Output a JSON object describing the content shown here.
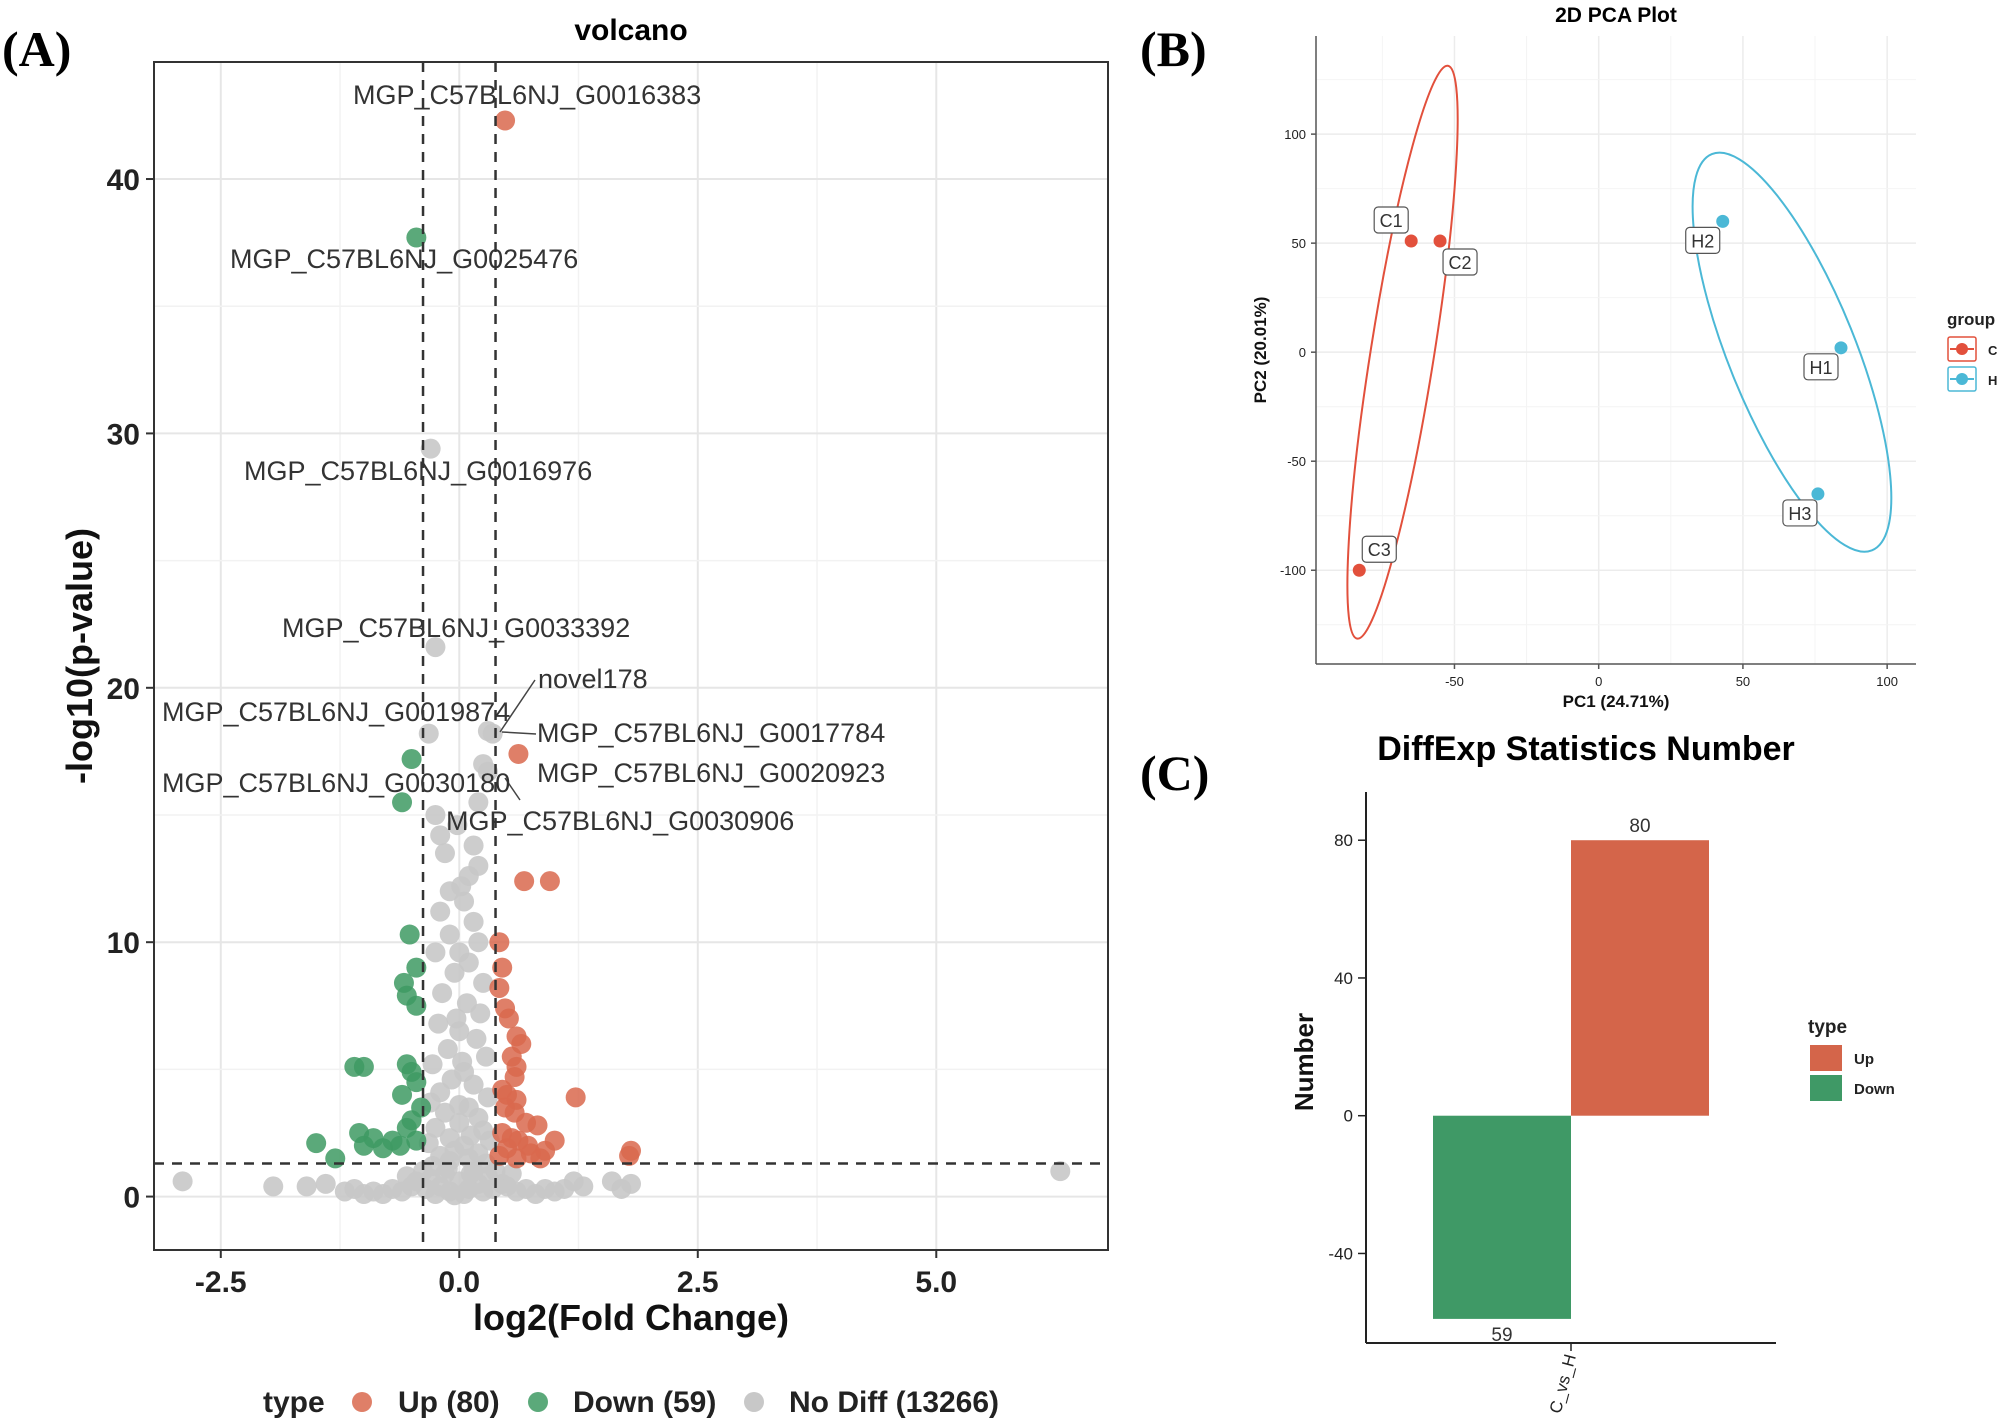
{
  "panels": {
    "a": "(A)",
    "b": "(B)",
    "c": "(C)"
  },
  "colors": {
    "up": "#d9694d",
    "down": "#3e9a63",
    "nodiff": "#c8c8c8",
    "pca_c": "#e2503c",
    "pca_h": "#4bb8d6",
    "bar_up": "#d4654a",
    "bar_down": "#3f9966"
  },
  "chart_data": [
    {
      "type": "scatter",
      "id": "volcano",
      "title": "volcano",
      "xlabel": "log2(Fold Change)",
      "ylabel": "-log10(p-value)",
      "xlim": [
        -3.2,
        6.8
      ],
      "ylim": [
        -2.1,
        44.6
      ],
      "xticks": [
        -2.5,
        0.0,
        2.5,
        5.0
      ],
      "xtick_labels": [
        "-2.5",
        "0.0",
        "2.5",
        "5.0"
      ],
      "yticks": [
        0,
        10,
        20,
        30,
        40
      ],
      "ytick_labels": [
        "0",
        "10",
        "20",
        "30",
        "40"
      ],
      "thresholds": {
        "x": [
          -0.38,
          0.38
        ],
        "y": 1.3
      },
      "legend": {
        "title": "type",
        "entries": [
          "Up (80)",
          "Down (59)",
          "No Diff (13266)"
        ]
      },
      "labels": [
        {
          "text": "MGP_C57BL6NJ_G0016383",
          "x": 0.48,
          "y": 42.3
        },
        {
          "text": "MGP_C57BL6NJ_G0025476",
          "x": -0.45,
          "y": 37.7
        },
        {
          "text": "MGP_C57BL6NJ_G0016976",
          "x": -0.3,
          "y": 29.4
        },
        {
          "text": "MGP_C57BL6NJ_G0033392",
          "x": -0.3,
          "y": 21.6
        },
        {
          "text": "novel178",
          "x": 0.3,
          "y": 18.3
        },
        {
          "text": "MGP_C57BL6NJ_G0019874",
          "x": -0.32,
          "y": 18.2
        },
        {
          "text": "MGP_C57BL6NJ_G0017784",
          "x": 0.35,
          "y": 18.2
        },
        {
          "text": "MGP_C57BL6NJ_G0020923",
          "x": 0.6,
          "y": 17.4
        },
        {
          "text": "MGP_C57BL6NJ_G0030180",
          "x": -0.42,
          "y": 17.2
        },
        {
          "text": "MGP_C57BL6NJ_G0030906",
          "x": 0.3,
          "y": 16.7
        }
      ],
      "series": [
        {
          "name": "Up",
          "points": [
            [
              0.48,
              42.3
            ],
            [
              0.62,
              17.4
            ],
            [
              0.68,
              12.4
            ],
            [
              0.95,
              12.4
            ],
            [
              0.42,
              10.0
            ],
            [
              0.45,
              9.0
            ],
            [
              0.42,
              8.2
            ],
            [
              0.48,
              7.4
            ],
            [
              0.52,
              7.0
            ],
            [
              0.6,
              6.3
            ],
            [
              0.65,
              6.0
            ],
            [
              0.55,
              5.5
            ],
            [
              0.6,
              5.1
            ],
            [
              0.58,
              4.7
            ],
            [
              0.45,
              4.2
            ],
            [
              0.5,
              4.0
            ],
            [
              0.6,
              3.8
            ],
            [
              0.48,
              3.5
            ],
            [
              0.58,
              3.3
            ],
            [
              0.7,
              2.9
            ],
            [
              0.82,
              2.8
            ],
            [
              0.45,
              2.5
            ],
            [
              0.55,
              2.3
            ],
            [
              0.62,
              2.2
            ],
            [
              0.72,
              2.0
            ],
            [
              0.5,
              1.9
            ],
            [
              0.9,
              1.8
            ],
            [
              1.0,
              2.2
            ],
            [
              1.22,
              3.9
            ],
            [
              1.8,
              1.8
            ],
            [
              0.42,
              1.6
            ],
            [
              0.6,
              1.5
            ],
            [
              0.75,
              1.7
            ],
            [
              0.85,
              1.5
            ],
            [
              1.78,
              1.6
            ]
          ]
        },
        {
          "name": "Down",
          "points": [
            [
              -0.45,
              37.7
            ],
            [
              -0.5,
              17.2
            ],
            [
              -0.6,
              15.5
            ],
            [
              -0.52,
              10.3
            ],
            [
              -0.45,
              9.0
            ],
            [
              -0.58,
              8.4
            ],
            [
              -0.55,
              7.9
            ],
            [
              -0.45,
              7.5
            ],
            [
              -1.0,
              5.1
            ],
            [
              -1.1,
              5.1
            ],
            [
              -0.55,
              5.2
            ],
            [
              -0.5,
              4.9
            ],
            [
              -0.45,
              4.5
            ],
            [
              -0.6,
              4.0
            ],
            [
              -0.4,
              3.5
            ],
            [
              -0.5,
              3.0
            ],
            [
              -0.55,
              2.7
            ],
            [
              -1.05,
              2.5
            ],
            [
              -0.9,
              2.3
            ],
            [
              -0.7,
              2.2
            ],
            [
              -0.62,
              2.0
            ],
            [
              -0.8,
              1.9
            ],
            [
              -1.0,
              2.0
            ],
            [
              -1.5,
              2.1
            ],
            [
              -1.3,
              1.5
            ],
            [
              -0.45,
              2.2
            ]
          ]
        },
        {
          "name": "No Diff",
          "points": [
            [
              -0.3,
              29.4
            ],
            [
              -0.25,
              21.6
            ],
            [
              0.3,
              18.3
            ],
            [
              -0.32,
              18.2
            ],
            [
              0.35,
              18.2
            ],
            [
              0.25,
              17.0
            ],
            [
              0.3,
              16.7
            ],
            [
              0.2,
              15.5
            ],
            [
              -0.25,
              15.0
            ],
            [
              -0.2,
              14.2
            ],
            [
              0.15,
              13.8
            ],
            [
              -0.15,
              13.5
            ],
            [
              0.2,
              13.0
            ],
            [
              0.1,
              12.6
            ],
            [
              -0.1,
              12.0
            ],
            [
              0.05,
              11.6
            ],
            [
              -0.2,
              11.2
            ],
            [
              0.15,
              10.8
            ],
            [
              -0.1,
              10.3
            ],
            [
              0.2,
              10.0
            ],
            [
              -0.25,
              9.6
            ],
            [
              0.1,
              9.2
            ],
            [
              -0.05,
              8.8
            ],
            [
              0.25,
              8.4
            ],
            [
              -0.18,
              8.0
            ],
            [
              0.08,
              7.6
            ],
            [
              0.22,
              7.2
            ],
            [
              -0.22,
              6.8
            ],
            [
              0.0,
              6.5
            ],
            [
              0.18,
              6.2
            ],
            [
              -0.12,
              5.8
            ],
            [
              0.28,
              5.5
            ],
            [
              -0.28,
              5.2
            ],
            [
              0.05,
              4.9
            ],
            [
              -0.08,
              4.6
            ],
            [
              0.15,
              4.4
            ],
            [
              -0.2,
              4.1
            ],
            [
              0.3,
              3.9
            ],
            [
              -0.3,
              3.7
            ],
            [
              0.1,
              3.5
            ],
            [
              -0.15,
              3.3
            ],
            [
              0.2,
              3.1
            ],
            [
              0.0,
              2.9
            ],
            [
              -0.25,
              2.7
            ],
            [
              0.25,
              2.6
            ],
            [
              0.12,
              2.4
            ],
            [
              -0.1,
              2.3
            ],
            [
              0.32,
              2.2
            ],
            [
              -0.32,
              2.1
            ],
            [
              0.05,
              2.0
            ],
            [
              -0.05,
              1.8
            ],
            [
              0.2,
              1.7
            ],
            [
              -0.2,
              1.6
            ],
            [
              0.1,
              1.5
            ],
            [
              -0.1,
              1.4
            ],
            [
              0.28,
              1.3
            ],
            [
              -0.28,
              1.2
            ],
            [
              0.15,
              1.0
            ],
            [
              -0.15,
              0.9
            ],
            [
              0.3,
              0.8
            ],
            [
              -0.3,
              0.7
            ],
            [
              0.0,
              0.6
            ],
            [
              0.2,
              0.5
            ],
            [
              -0.2,
              0.4
            ],
            [
              0.1,
              0.3
            ],
            [
              -0.1,
              0.2
            ],
            [
              0.25,
              0.2
            ],
            [
              -0.25,
              0.1
            ],
            [
              0.05,
              0.1
            ],
            [
              -0.05,
              0.05
            ],
            [
              0.35,
              0.3
            ],
            [
              -0.35,
              0.3
            ],
            [
              0.5,
              0.4
            ],
            [
              -0.5,
              0.4
            ],
            [
              0.6,
              0.2
            ],
            [
              -0.6,
              0.2
            ],
            [
              0.7,
              0.3
            ],
            [
              -0.7,
              0.3
            ],
            [
              0.8,
              0.1
            ],
            [
              -0.8,
              0.1
            ],
            [
              0.9,
              0.3
            ],
            [
              -0.9,
              0.2
            ],
            [
              1.0,
              0.2
            ],
            [
              -1.0,
              0.1
            ],
            [
              1.1,
              0.3
            ],
            [
              1.2,
              0.6
            ],
            [
              1.3,
              0.4
            ],
            [
              1.6,
              0.6
            ],
            [
              1.7,
              0.3
            ],
            [
              1.8,
              0.5
            ],
            [
              -1.1,
              0.3
            ],
            [
              -1.2,
              0.2
            ],
            [
              -1.4,
              0.5
            ],
            [
              -1.6,
              0.4
            ],
            [
              -1.95,
              0.4
            ],
            [
              -2.9,
              0.6
            ],
            [
              6.3,
              1.0
            ],
            [
              0.12,
              0.9
            ],
            [
              -0.12,
              1.1
            ],
            [
              0.38,
              1.0
            ],
            [
              -0.38,
              1.0
            ],
            [
              0.45,
              0.5
            ],
            [
              -0.45,
              0.6
            ],
            [
              0.55,
              0.9
            ],
            [
              -0.55,
              0.8
            ],
            [
              0.0,
              3.6
            ],
            [
              0.03,
              5.3
            ],
            [
              -0.03,
              7.0
            ],
            [
              0.0,
              9.6
            ],
            [
              0.02,
              12.2
            ],
            [
              -0.02,
              14.6
            ]
          ]
        }
      ]
    },
    {
      "type": "scatter",
      "id": "pca",
      "title": "2D PCA Plot",
      "xlabel": "PC1 (24.71%)",
      "ylabel": "PC2 (20.01%)",
      "xlim": [
        -98,
        110
      ],
      "ylim": [
        -143,
        145
      ],
      "xticks": [
        -50,
        0,
        50,
        100
      ],
      "xtick_labels": [
        "-50",
        "0",
        "50",
        "100"
      ],
      "yticks": [
        -100,
        -50,
        0,
        50,
        100
      ],
      "ytick_labels": [
        "-100",
        "-50",
        "0",
        "50",
        "100"
      ],
      "legend": {
        "title": "group",
        "entries": [
          "C",
          "H"
        ]
      },
      "series": [
        {
          "name": "C",
          "points": [
            {
              "label": "C1",
              "x": -65,
              "y": 51
            },
            {
              "label": "C2",
              "x": -55,
              "y": 51
            },
            {
              "label": "C3",
              "x": -83,
              "y": -100
            }
          ]
        },
        {
          "name": "H",
          "points": [
            {
              "label": "H1",
              "x": 84,
              "y": 2
            },
            {
              "label": "H2",
              "x": 43,
              "y": 60
            },
            {
              "label": "H3",
              "x": 76,
              "y": -65
            }
          ]
        }
      ],
      "ellipses": [
        {
          "group": "C",
          "cx": -68,
          "cy": 0,
          "rx": 11,
          "ry": 133,
          "angle": 9
        },
        {
          "group": "H",
          "cx": 67,
          "cy": 0,
          "rx": 22,
          "ry": 98,
          "angle": -22
        }
      ]
    },
    {
      "type": "bar",
      "id": "diffexp",
      "title": "DiffExp Statistics Number",
      "xlabel": "",
      "ylabel": "Number",
      "categories": [
        "C_vs_H"
      ],
      "ylim": [
        -66,
        94
      ],
      "yticks": [
        -40,
        0,
        40,
        80
      ],
      "ytick_labels": [
        "-40",
        "0",
        "40",
        "80"
      ],
      "series": [
        {
          "name": "Up",
          "values": [
            80
          ],
          "label": "80"
        },
        {
          "name": "Down",
          "values": [
            -59
          ],
          "label": "59"
        }
      ],
      "legend": {
        "title": "type",
        "entries": [
          "Up",
          "Down"
        ]
      }
    }
  ]
}
